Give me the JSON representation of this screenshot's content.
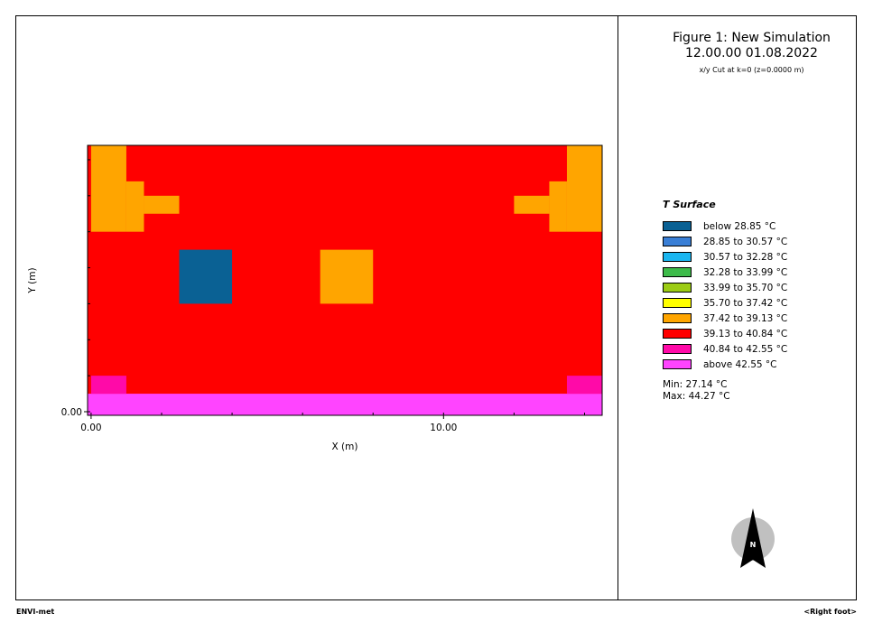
{
  "header": {
    "title": "Figure 1: New Simulation",
    "datetime": "12.00.00 01.08.2022",
    "cut_info": "x/y Cut at k=0 (z=0.0000 m)"
  },
  "chart_data": {
    "type": "heatmap",
    "xlabel": "X (m)",
    "ylabel": "Y (m)",
    "xlim": [
      -0.1,
      14.5
    ],
    "ylim": [
      -0.1,
      7.4
    ],
    "xtick_labels": [
      {
        "value": 0,
        "text": "0.00"
      },
      {
        "value": 10,
        "text": "10.00"
      }
    ],
    "ytick_labels": [
      {
        "value": 0,
        "text": "0.00"
      }
    ],
    "x_minor_ticks": [
      0,
      2,
      4,
      6,
      8,
      10,
      12,
      14
    ],
    "y_minor_ticks": [
      0,
      1,
      2,
      3,
      4,
      5,
      6,
      7
    ],
    "background_class": 7,
    "cells": [
      {
        "x0": 0,
        "x1": 1,
        "y0": 5,
        "y1": 7.4,
        "class": 6
      },
      {
        "x0": 1,
        "x1": 1.5,
        "y0": 5,
        "y1": 6.4,
        "class": 6
      },
      {
        "x0": 1.5,
        "x1": 2.5,
        "y0": 5.5,
        "y1": 6,
        "class": 6
      },
      {
        "x0": 13.5,
        "x1": 14.5,
        "y0": 5,
        "y1": 7.4,
        "class": 6
      },
      {
        "x0": 13,
        "x1": 13.5,
        "y0": 5,
        "y1": 6.4,
        "class": 6
      },
      {
        "x0": 12,
        "x1": 13,
        "y0": 5.5,
        "y1": 6,
        "class": 6
      },
      {
        "x0": 2.5,
        "x1": 4,
        "y0": 3,
        "y1": 4.5,
        "class": 0
      },
      {
        "x0": 6.5,
        "x1": 8,
        "y0": 3,
        "y1": 4.5,
        "class": 6
      },
      {
        "x0": -0.1,
        "x1": 14.5,
        "y0": -0.1,
        "y1": 0.5,
        "class": 9
      },
      {
        "x0": 0,
        "x1": 1,
        "y0": 0.5,
        "y1": 1,
        "class": 8
      },
      {
        "x0": 13.5,
        "x1": 14.5,
        "y0": 0.5,
        "y1": 1,
        "class": 8
      }
    ]
  },
  "legend": {
    "title": "T Surface",
    "items": [
      {
        "label": "below 28.85 °C",
        "color": "#0a6194"
      },
      {
        "label": "28.85 to 30.57 °C",
        "color": "#3a7fd6"
      },
      {
        "label": "30.57 to 32.28 °C",
        "color": "#1ab6f0"
      },
      {
        "label": "32.28 to 33.99 °C",
        "color": "#3dbb4a"
      },
      {
        "label": "33.99 to 35.70 °C",
        "color": "#9ccc14"
      },
      {
        "label": "35.70 to 37.42 °C",
        "color": "#ffff00"
      },
      {
        "label": "37.42 to 39.13 °C",
        "color": "#ffa500"
      },
      {
        "label": "39.13 to 40.84 °C",
        "color": "#ff0000"
      },
      {
        "label": "40.84 to 42.55 °C",
        "color": "#ff0aa8"
      },
      {
        "label": "above 42.55 °C",
        "color": "#ff44ff"
      }
    ]
  },
  "stats": {
    "min": "Min: 27.14 °C",
    "max": "Max: 44.27 °C"
  },
  "compass": {
    "label": "N"
  },
  "footer": {
    "left": "ENVI-met",
    "right": "<Right foot>"
  }
}
